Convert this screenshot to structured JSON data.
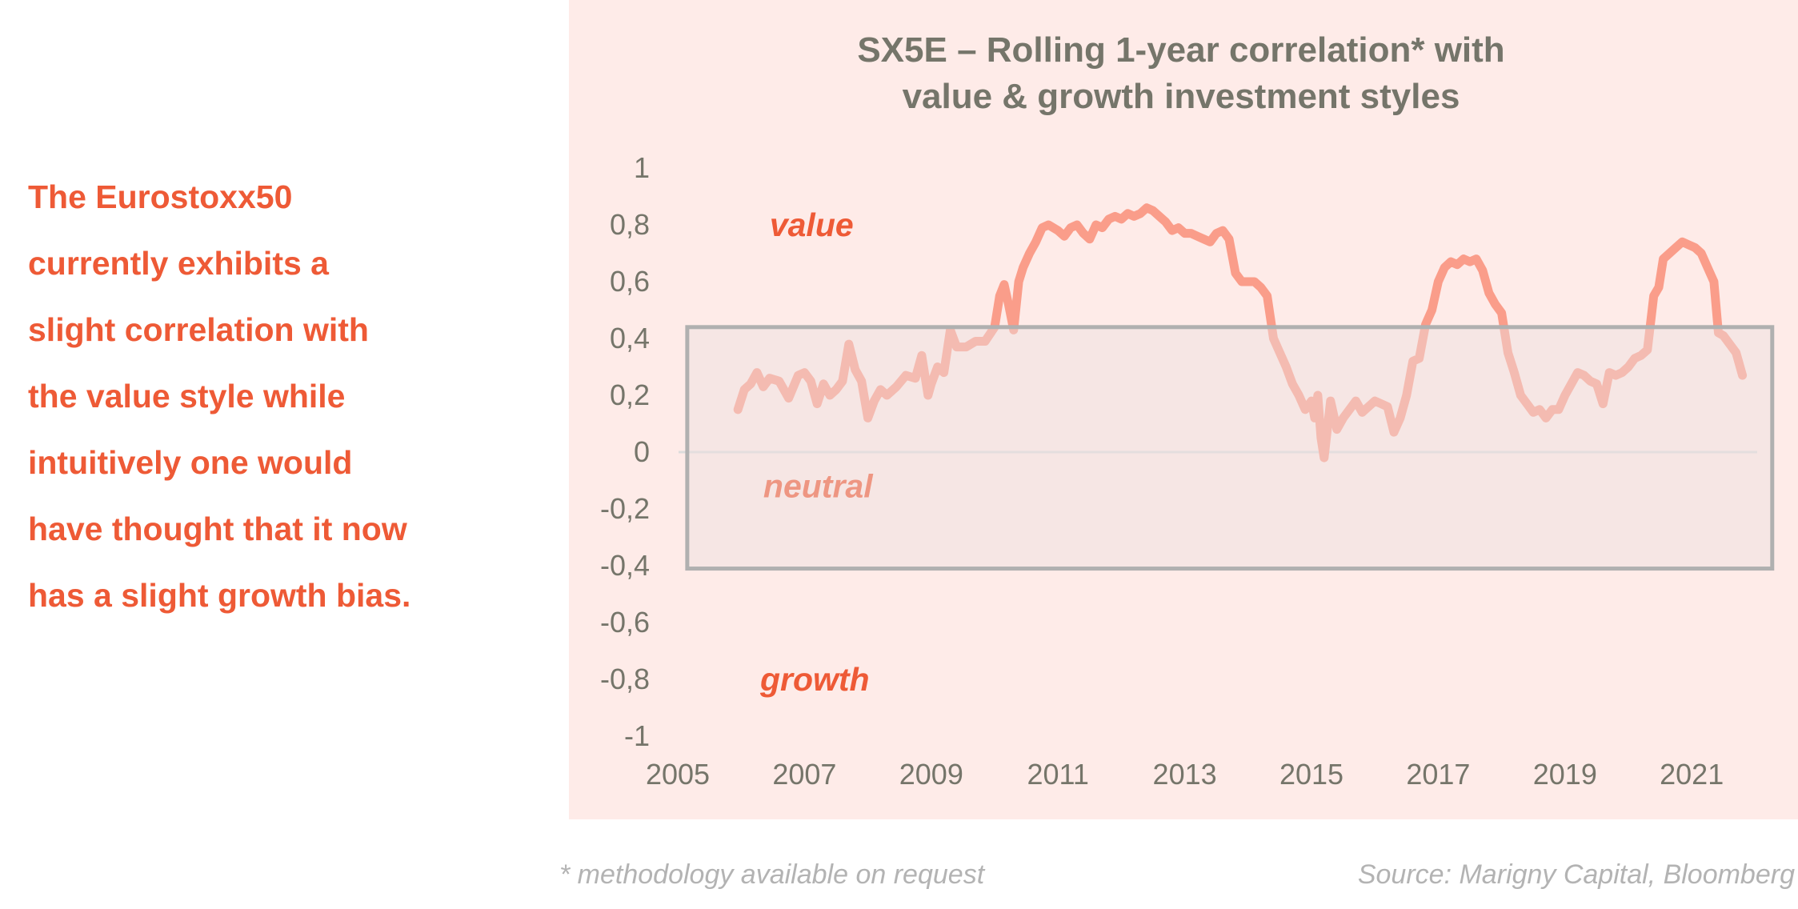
{
  "intro_text": {
    "lines": [
      "The Eurostoxx50",
      "currently exhibits a",
      "slight correlation with",
      "the value style while",
      "intuitively one would",
      "have thought that it now",
      "has a slight growth bias."
    ]
  },
  "footer": {
    "methodology_note": "* methodology available on request",
    "source": "Source: Marigny Capital, Bloomberg"
  },
  "colors": {
    "text_accent": "#ee5a36",
    "panel_bg": "#feebe8",
    "title": "#75756a",
    "line": "#fa9d8a",
    "neutral_box_border": "#b0b0b0",
    "neutral_box_fill": "#f5e6e4",
    "zero_line": "#dcdcdc",
    "footer": "#b3b3b3"
  },
  "chart_data": {
    "type": "line",
    "title": "SX5E – Rolling 1-year correlation* with value & growth investment styles",
    "title_lines": [
      "SX5E – Rolling 1-year correlation* with",
      "value & growth investment styles"
    ],
    "xlabel": "",
    "ylabel": "",
    "xlim": [
      2005,
      2022.5
    ],
    "ylim": [
      -1,
      1
    ],
    "x_ticks": [
      2005,
      2007,
      2009,
      2011,
      2013,
      2015,
      2017,
      2019,
      2021
    ],
    "x_tick_labels": [
      "2005",
      "2007",
      "2009",
      "2011",
      "2013",
      "2015",
      "2017",
      "2019",
      "2021"
    ],
    "y_ticks": [
      1,
      0.8,
      0.6,
      0.4,
      0.2,
      0,
      -0.2,
      -0.4,
      -0.6,
      -0.8,
      -1
    ],
    "y_tick_labels": [
      "1",
      "0,8",
      "0,6",
      "0,4",
      "0,2",
      "0",
      "-0,2",
      "-0,4",
      "-0,6",
      "-0,8",
      "-1"
    ],
    "grid": false,
    "legend": "none",
    "annotations": [
      {
        "text": "value",
        "x": 2006.45,
        "y": 0.8
      },
      {
        "text": "neutral",
        "x": 2006.35,
        "y": -0.12
      },
      {
        "text": "growth",
        "x": 2006.3,
        "y": -0.8
      }
    ],
    "neutral_band": {
      "x": [
        2005.15,
        2022.27
      ],
      "y": [
        -0.41,
        0.44
      ]
    },
    "series": [
      {
        "name": "SX5E rolling 1-year correlation",
        "x": [
          2005.95,
          2006.05,
          2006.15,
          2006.25,
          2006.35,
          2006.45,
          2006.6,
          2006.75,
          2006.9,
          2007.0,
          2007.1,
          2007.2,
          2007.3,
          2007.4,
          2007.5,
          2007.6,
          2007.7,
          2007.8,
          2007.9,
          2008.0,
          2008.1,
          2008.2,
          2008.3,
          2008.45,
          2008.6,
          2008.75,
          2008.85,
          2008.95,
          2009.0,
          2009.1,
          2009.2,
          2009.3,
          2009.4,
          2009.55,
          2009.7,
          2009.85,
          2010.0,
          2010.08,
          2010.15,
          2010.22,
          2010.3,
          2010.38,
          2010.45,
          2010.55,
          2010.65,
          2010.75,
          2010.85,
          2011.0,
          2011.1,
          2011.2,
          2011.3,
          2011.4,
          2011.5,
          2011.6,
          2011.7,
          2011.8,
          2011.9,
          2012.0,
          2012.1,
          2012.2,
          2012.3,
          2012.4,
          2012.5,
          2012.6,
          2012.7,
          2012.8,
          2012.9,
          2013.0,
          2013.1,
          2013.2,
          2013.3,
          2013.4,
          2013.5,
          2013.6,
          2013.7,
          2013.8,
          2013.9,
          2014.0,
          2014.1,
          2014.2,
          2014.3,
          2014.4,
          2014.5,
          2014.6,
          2014.7,
          2014.8,
          2014.9,
          2015.0,
          2015.05,
          2015.1,
          2015.15,
          2015.2,
          2015.25,
          2015.3,
          2015.4,
          2015.5,
          2015.6,
          2015.7,
          2015.8,
          2015.9,
          2016.0,
          2016.1,
          2016.2,
          2016.3,
          2016.4,
          2016.5,
          2016.6,
          2016.7,
          2016.8,
          2016.9,
          2017.0,
          2017.1,
          2017.2,
          2017.3,
          2017.4,
          2017.5,
          2017.6,
          2017.7,
          2017.8,
          2017.9,
          2018.0,
          2018.1,
          2018.2,
          2018.3,
          2018.4,
          2018.5,
          2018.6,
          2018.7,
          2018.8,
          2018.9,
          2019.0,
          2019.1,
          2019.2,
          2019.3,
          2019.4,
          2019.5,
          2019.6,
          2019.7,
          2019.8,
          2019.9,
          2020.0,
          2020.1,
          2020.2,
          2020.3,
          2020.4,
          2020.48,
          2020.55,
          2020.65,
          2020.75,
          2020.85,
          2020.95,
          2021.05,
          2021.15,
          2021.25,
          2021.35,
          2021.42,
          2021.5,
          2021.6,
          2021.7,
          2021.8
        ],
        "values": [
          0.15,
          0.22,
          0.24,
          0.28,
          0.23,
          0.26,
          0.25,
          0.19,
          0.27,
          0.28,
          0.25,
          0.17,
          0.24,
          0.2,
          0.22,
          0.25,
          0.38,
          0.29,
          0.25,
          0.12,
          0.18,
          0.22,
          0.2,
          0.23,
          0.27,
          0.26,
          0.34,
          0.2,
          0.24,
          0.3,
          0.28,
          0.43,
          0.37,
          0.37,
          0.39,
          0.39,
          0.44,
          0.55,
          0.59,
          0.52,
          0.43,
          0.6,
          0.65,
          0.7,
          0.74,
          0.79,
          0.8,
          0.78,
          0.76,
          0.79,
          0.8,
          0.77,
          0.75,
          0.8,
          0.79,
          0.82,
          0.83,
          0.82,
          0.84,
          0.83,
          0.84,
          0.86,
          0.85,
          0.83,
          0.81,
          0.78,
          0.79,
          0.77,
          0.77,
          0.76,
          0.75,
          0.74,
          0.77,
          0.78,
          0.75,
          0.63,
          0.6,
          0.6,
          0.6,
          0.58,
          0.55,
          0.4,
          0.35,
          0.3,
          0.24,
          0.2,
          0.15,
          0.18,
          0.12,
          0.2,
          0.05,
          -0.02,
          0.08,
          0.18,
          0.08,
          0.12,
          0.15,
          0.18,
          0.14,
          0.16,
          0.18,
          0.17,
          0.16,
          0.07,
          0.12,
          0.2,
          0.32,
          0.33,
          0.45,
          0.5,
          0.6,
          0.65,
          0.67,
          0.66,
          0.68,
          0.67,
          0.68,
          0.64,
          0.56,
          0.52,
          0.49,
          0.35,
          0.28,
          0.2,
          0.17,
          0.14,
          0.15,
          0.12,
          0.15,
          0.15,
          0.2,
          0.24,
          0.28,
          0.27,
          0.25,
          0.24,
          0.17,
          0.28,
          0.27,
          0.28,
          0.3,
          0.33,
          0.34,
          0.36,
          0.55,
          0.58,
          0.68,
          0.7,
          0.72,
          0.74,
          0.73,
          0.72,
          0.7,
          0.65,
          0.6,
          0.42,
          0.41,
          0.38,
          0.35,
          0.27
        ]
      }
    ]
  }
}
